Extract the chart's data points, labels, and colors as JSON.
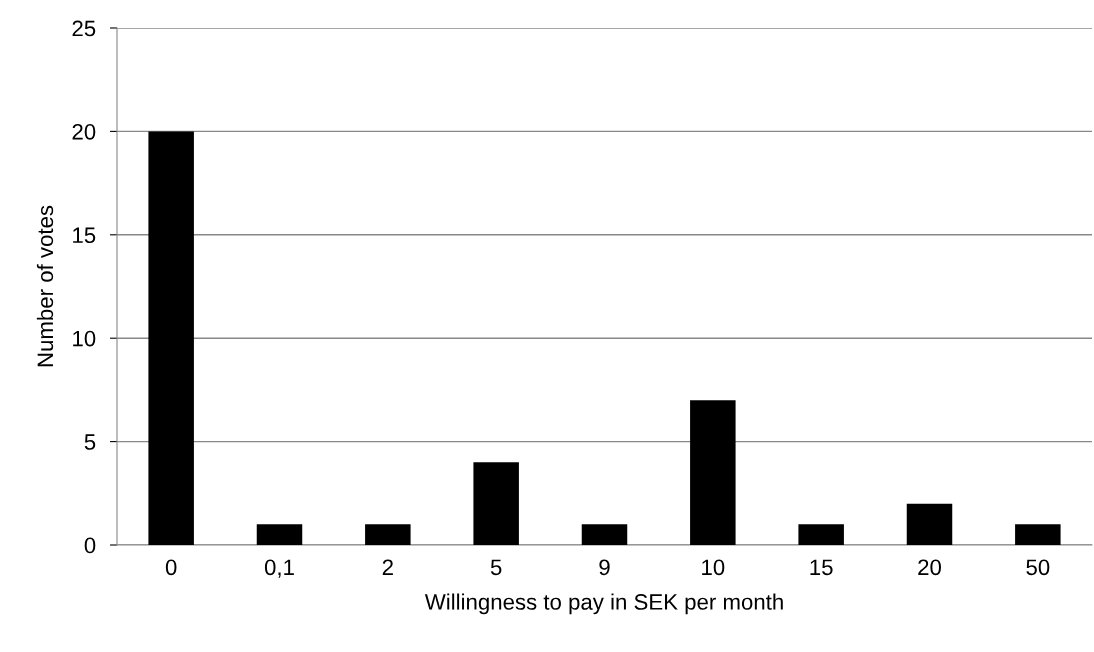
{
  "chart_data": {
    "type": "bar",
    "categories": [
      "0",
      "0,1",
      "2",
      "5",
      "9",
      "10",
      "15",
      "20",
      "50"
    ],
    "values": [
      20,
      1,
      1,
      4,
      1,
      7,
      1,
      2,
      1
    ],
    "color": "#000000",
    "xlabel": "Willingness to pay in SEK per month",
    "ylabel": "Number of votes",
    "ylim": [
      0,
      25
    ],
    "yticks": [
      0,
      5,
      10,
      15,
      20,
      25
    ],
    "grid": "y"
  }
}
